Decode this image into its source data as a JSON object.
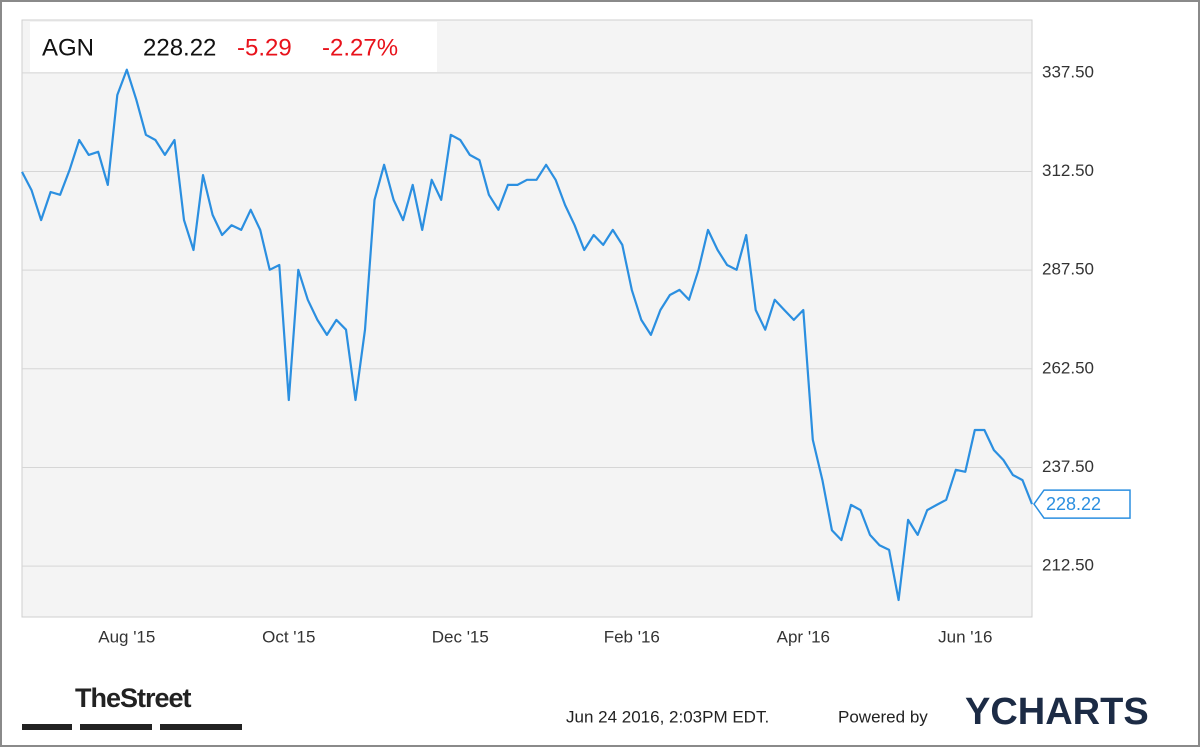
{
  "chart_data": {
    "type": "line",
    "header": {
      "ticker": "AGN",
      "price": "228.22",
      "change": "-5.29",
      "change_pct": "-2.27%"
    },
    "categories": [
      null,
      null,
      null,
      null,
      null,
      null,
      null,
      null,
      null,
      null,
      null,
      "Aug '15",
      null,
      null,
      null,
      null,
      null,
      null,
      null,
      null,
      null,
      null,
      null,
      null,
      null,
      null,
      null,
      null,
      "Oct '15",
      null,
      null,
      null,
      null,
      null,
      null,
      null,
      null,
      null,
      null,
      null,
      null,
      null,
      null,
      null,
      null,
      null,
      "Dec '15",
      null,
      null,
      null,
      null,
      null,
      null,
      null,
      null,
      null,
      null,
      null,
      null,
      null,
      null,
      null,
      null,
      null,
      "Feb '16",
      null,
      null,
      null,
      null,
      null,
      null,
      null,
      null,
      null,
      null,
      null,
      null,
      null,
      null,
      null,
      null,
      null,
      "Apr '16",
      null,
      null,
      null,
      null,
      null,
      null,
      null,
      null,
      null,
      null,
      null,
      null,
      null,
      null,
      null,
      null,
      "Jun '16",
      null,
      null,
      null,
      null,
      null,
      null,
      null
    ],
    "series": [
      {
        "name": "AGN",
        "color": "#2b8fe0",
        "values": [
          312.4,
          307.8,
          300.2,
          307.3,
          306.6,
          312.9,
          320.5,
          316.7,
          317.5,
          309.1,
          331.9,
          338.3,
          330.7,
          321.8,
          320.5,
          316.7,
          320.5,
          300.2,
          292.6,
          311.6,
          301.5,
          296.4,
          298.9,
          297.7,
          302.8,
          297.7,
          287.6,
          288.8,
          254.6,
          287.6,
          280.0,
          274.9,
          271.1,
          274.9,
          272.4,
          254.6,
          272.4,
          305.3,
          314.2,
          305.3,
          300.2,
          309.1,
          297.7,
          310.4,
          305.3,
          321.8,
          320.5,
          316.7,
          315.4,
          306.6,
          302.8,
          309.1,
          309.1,
          310.4,
          310.4,
          314.2,
          310.4,
          304.0,
          298.9,
          292.6,
          296.4,
          293.9,
          297.7,
          293.9,
          282.5,
          274.9,
          271.1,
          277.4,
          281.2,
          282.5,
          280.0,
          287.6,
          297.7,
          292.6,
          288.8,
          287.6,
          296.4,
          277.4,
          272.4,
          280.0,
          277.4,
          274.9,
          277.4,
          244.5,
          234.3,
          221.6,
          219.1,
          228.0,
          226.7,
          220.4,
          217.8,
          216.6,
          203.9,
          224.2,
          220.4,
          226.7,
          228.0,
          229.3,
          236.9,
          236.4,
          247.0,
          247.0,
          241.9,
          239.4,
          235.6,
          234.3,
          228.22
        ]
      }
    ],
    "ylim": [
      199.6,
      350.9
    ],
    "yticks": [
      {
        "value": 212.5,
        "label": "212.50"
      },
      {
        "value": 237.5,
        "label": "237.50"
      },
      {
        "value": 262.5,
        "label": "262.50"
      },
      {
        "value": 287.5,
        "label": "287.50"
      },
      {
        "value": 312.5,
        "label": "312.50"
      },
      {
        "value": 337.5,
        "label": "337.50"
      }
    ],
    "grid": true,
    "footer": {
      "brand": "TheStreet",
      "timestamp": "Jun 24 2016, 2:03PM EDT.",
      "powered": "Powered by",
      "logo": "YCHARTS"
    }
  }
}
